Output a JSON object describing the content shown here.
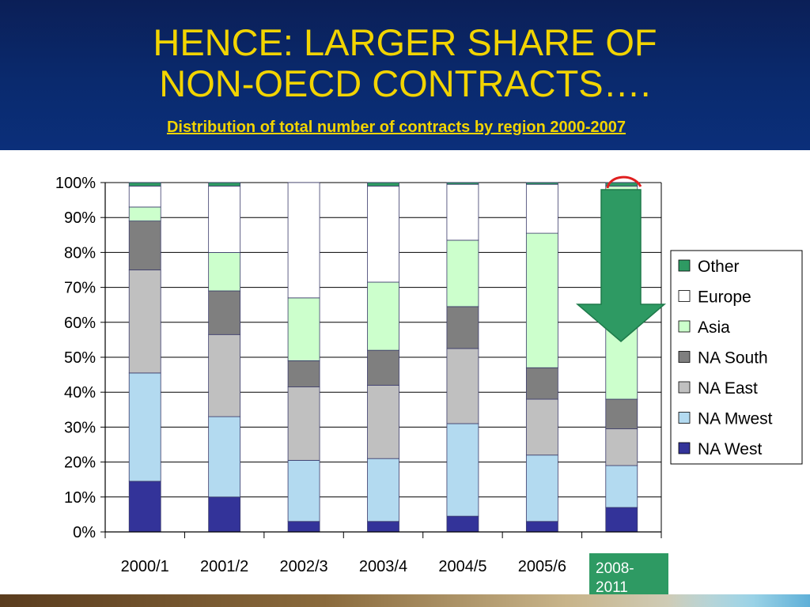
{
  "header": {
    "title": "HENCE: LARGER SHARE OF\nNON-OECD CONTRACTS….",
    "subtitle": "Distribution of total number of contracts by region 2000-2007"
  },
  "extra_label": "2008-\n2011",
  "colors": {
    "header_bg": "#0a2a6e",
    "title": "#f2d400",
    "arrow": "#2e9a63",
    "highlight_circle": "#e02020"
  },
  "chart_data": {
    "type": "bar",
    "stacked": true,
    "percent": true,
    "title": "",
    "xlabel": "",
    "ylabel": "",
    "ylim": [
      0,
      100
    ],
    "yticks": [
      "0%",
      "10%",
      "20%",
      "30%",
      "40%",
      "50%",
      "60%",
      "70%",
      "80%",
      "90%",
      "100%"
    ],
    "categories": [
      "2000/1",
      "2001/2",
      "2002/3",
      "2003/4",
      "2004/5",
      "2005/6",
      ""
    ],
    "series": [
      {
        "name": "NA West",
        "color": "#333399",
        "values": [
          14.5,
          10,
          3,
          3,
          4.5,
          3,
          7
        ]
      },
      {
        "name": "NA Mwest",
        "color": "#b3daf0",
        "values": [
          31,
          23,
          17.5,
          18,
          26.5,
          19,
          12
        ]
      },
      {
        "name": "NA East",
        "color": "#c0c0c0",
        "values": [
          29.5,
          23.5,
          21,
          21,
          21.5,
          16,
          10.5
        ]
      },
      {
        "name": "NA South",
        "color": "#7f7f7f",
        "values": [
          14,
          12.5,
          7.5,
          10,
          12,
          9,
          8.5
        ]
      },
      {
        "name": "Asia",
        "color": "#ccffcc",
        "values": [
          4,
          11,
          18,
          19.5,
          19,
          38.5,
          61
        ]
      },
      {
        "name": "Europe",
        "color": "#ffffff",
        "values": [
          6,
          19,
          33,
          27.5,
          16,
          14,
          0
        ]
      },
      {
        "name": "Other",
        "color": "#2e9a63",
        "values": [
          1,
          1,
          0,
          1,
          0.5,
          0.5,
          1
        ]
      }
    ],
    "legend": {
      "position": "right",
      "order": [
        "Other",
        "Europe",
        "Asia",
        "NA South",
        "NA East",
        "NA Mwest",
        "NA West"
      ]
    },
    "grid": true
  }
}
